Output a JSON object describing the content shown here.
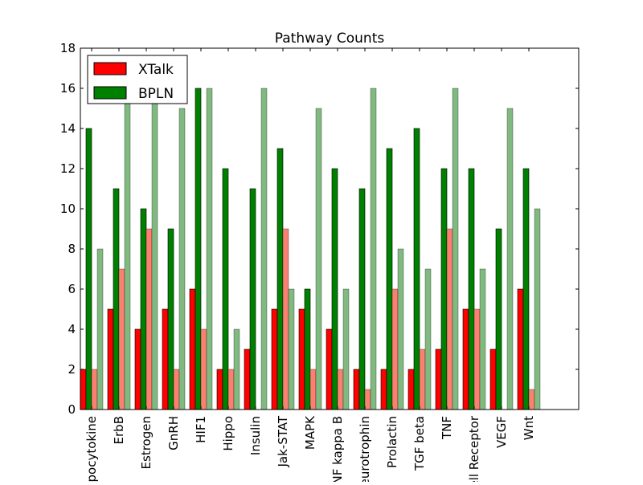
{
  "chart_data": {
    "type": "bar",
    "title": "Pathway Counts",
    "xlabel": "",
    "ylabel": "",
    "ylim": [
      0,
      18
    ],
    "yticks": [
      0,
      2,
      4,
      6,
      8,
      10,
      12,
      14,
      16,
      18
    ],
    "grid": false,
    "legend_position": "top-left",
    "categories": [
      "Adipocytokine",
      "ErbB",
      "Estrogen",
      "GnRH",
      "HIF1",
      "Hippo",
      "Insulin",
      "Jak-STAT",
      "MAPK",
      "NF kappa B",
      "Neurotrophin",
      "Prolactin",
      "TGF beta",
      "TNF",
      "T Cell Receptor",
      "VEGF",
      "Wnt"
    ],
    "series": [
      {
        "name": "XTalk",
        "color": "#ff0000",
        "values": [
          2,
          5,
          4,
          5,
          6,
          2,
          3,
          5,
          5,
          4,
          2,
          2,
          2,
          3,
          5,
          3,
          6
        ]
      },
      {
        "name": "BPLN",
        "color": "#008000",
        "values": [
          14,
          11,
          10,
          9,
          16,
          12,
          11,
          13,
          6,
          12,
          11,
          13,
          14,
          12,
          12,
          9,
          12
        ]
      },
      {
        "name": "",
        "color": "#fa8072",
        "values": [
          2,
          7,
          9,
          2,
          4,
          2,
          0,
          9,
          2,
          2,
          1,
          6,
          3,
          9,
          5,
          0,
          1
        ]
      },
      {
        "name": "",
        "color": "#80ba80",
        "values": [
          8,
          16,
          16,
          15,
          16,
          4,
          16,
          6,
          15,
          6,
          16,
          8,
          7,
          16,
          7,
          15,
          10
        ]
      }
    ]
  }
}
